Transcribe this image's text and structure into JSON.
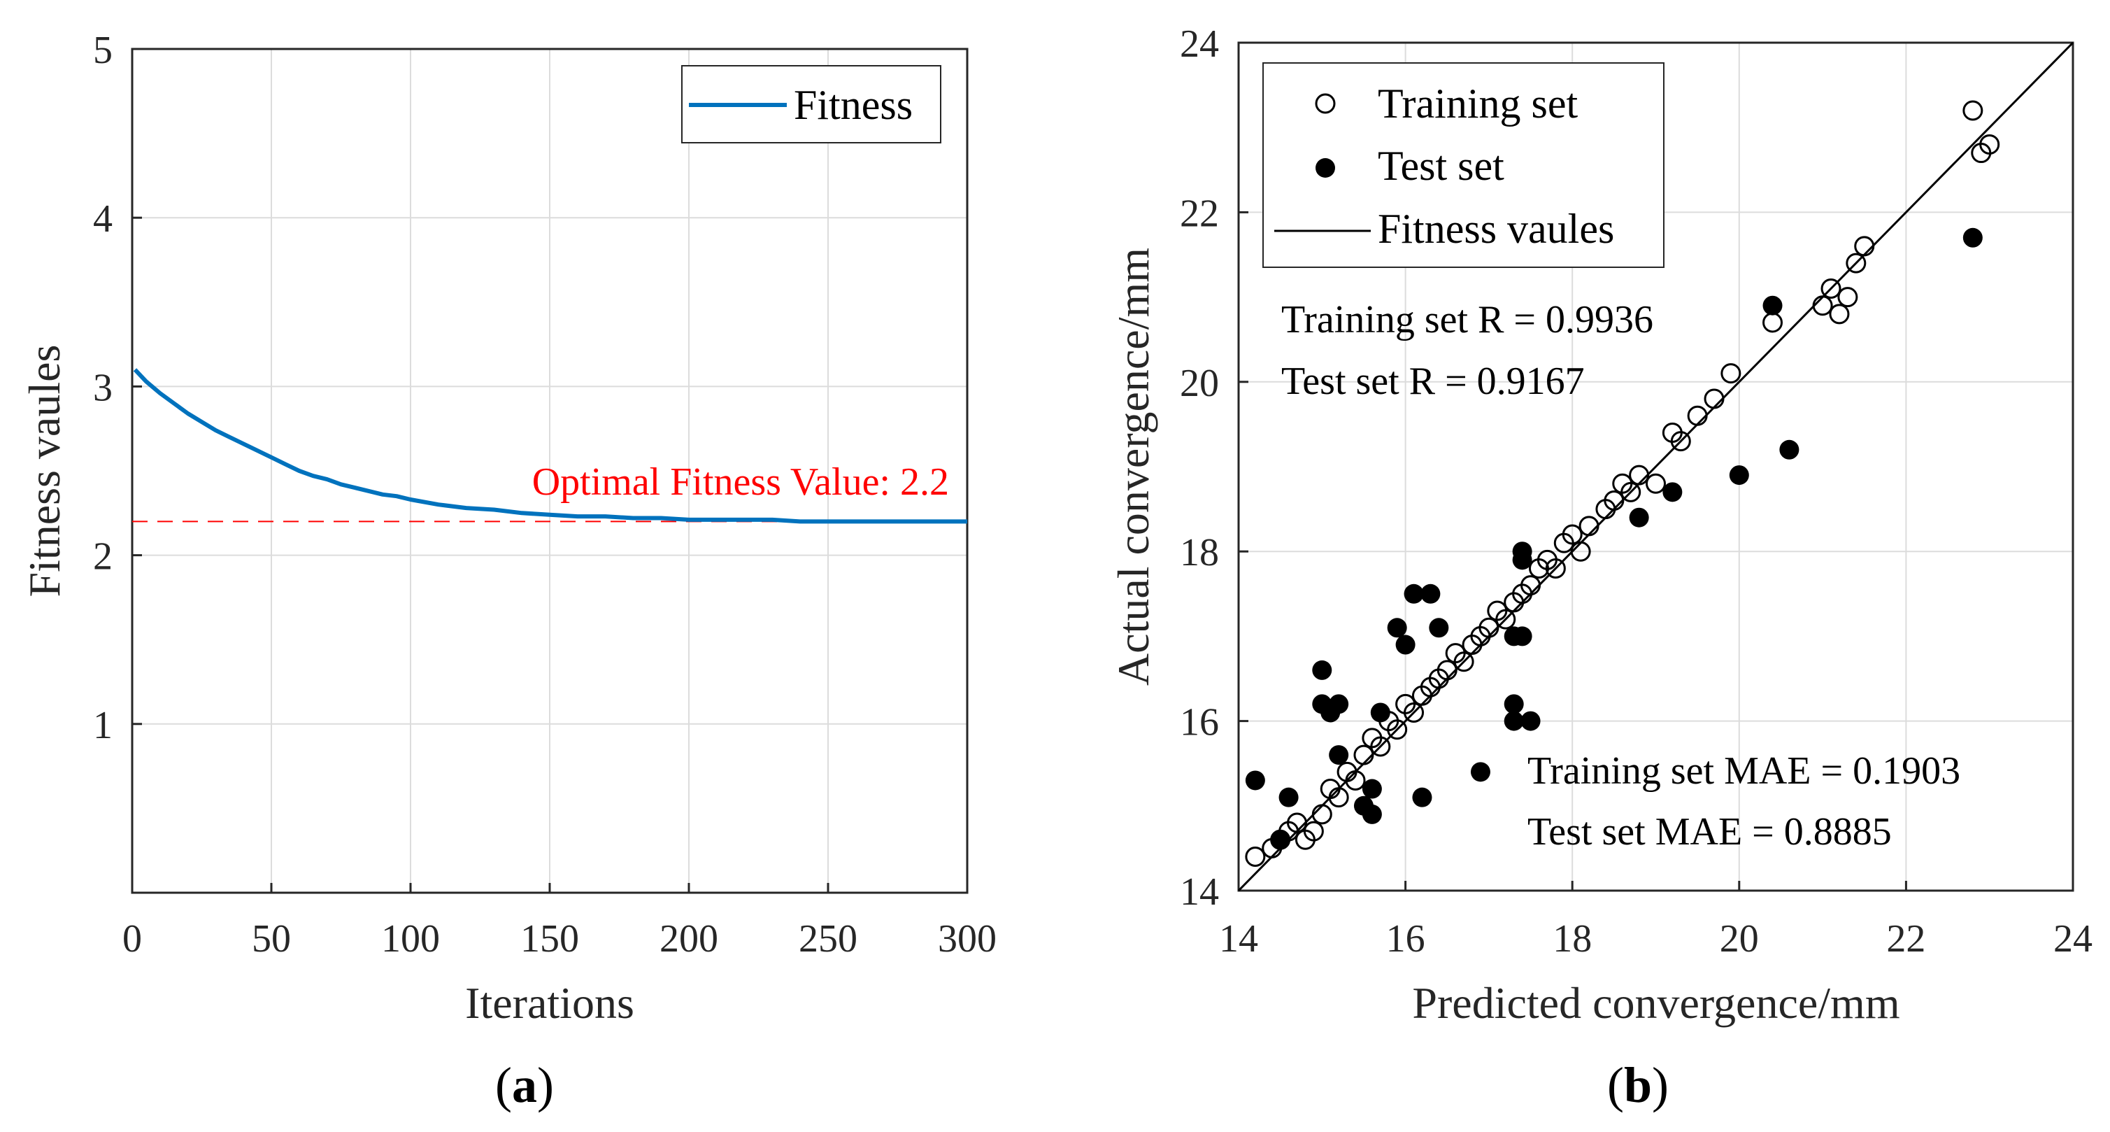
{
  "chart_data": [
    {
      "type": "line",
      "panel_label_open": "(",
      "panel_label": "a",
      "panel_label_close": ")",
      "xlabel": "Iterations",
      "ylabel": "Fitness vaules",
      "xlim": [
        0,
        300
      ],
      "ylim": [
        0,
        5
      ],
      "xticks": [
        0,
        50,
        100,
        150,
        200,
        250,
        300
      ],
      "yticks": [
        1,
        2,
        3,
        4,
        5
      ],
      "grid": true,
      "legend": {
        "placement": "top-right",
        "entries": [
          "Fitness"
        ]
      },
      "colors": {
        "series": "#0072bd",
        "reference": "#ff0000"
      },
      "series": [
        {
          "name": "Fitness",
          "x": [
            1,
            5,
            10,
            15,
            20,
            25,
            30,
            35,
            40,
            45,
            50,
            55,
            60,
            65,
            70,
            75,
            80,
            85,
            90,
            95,
            100,
            110,
            120,
            130,
            140,
            150,
            160,
            170,
            180,
            190,
            200,
            210,
            220,
            230,
            240,
            250,
            260,
            270,
            280,
            290,
            300
          ],
          "y": [
            3.1,
            3.03,
            2.96,
            2.9,
            2.84,
            2.79,
            2.74,
            2.7,
            2.66,
            2.62,
            2.58,
            2.54,
            2.5,
            2.47,
            2.45,
            2.42,
            2.4,
            2.38,
            2.36,
            2.35,
            2.33,
            2.3,
            2.28,
            2.27,
            2.25,
            2.24,
            2.23,
            2.23,
            2.22,
            2.22,
            2.21,
            2.21,
            2.21,
            2.21,
            2.2,
            2.2,
            2.2,
            2.2,
            2.2,
            2.2,
            2.2
          ]
        }
      ],
      "reference_line": {
        "y": 2.2,
        "style": "dashed"
      },
      "annotations": [
        "Optimal Fitness Value: 2.2"
      ]
    },
    {
      "type": "scatter",
      "panel_label_open": "(",
      "panel_label": "b",
      "panel_label_close": ")",
      "xlabel": "Predicted convergence/mm",
      "ylabel": "Actual convergence/mm",
      "xlim": [
        14,
        24
      ],
      "ylim": [
        14,
        24
      ],
      "xticks": [
        14,
        16,
        18,
        20,
        22,
        24
      ],
      "yticks": [
        14,
        16,
        18,
        20,
        22,
        24
      ],
      "grid": true,
      "legend": {
        "placement": "top-left",
        "entries": [
          "Training set",
          "Test set",
          "Fitness vaules"
        ]
      },
      "fit_line": {
        "x": [
          14,
          24
        ],
        "y": [
          14,
          24
        ]
      },
      "annotations": [
        "Training set R = 0.9936",
        "Test set R = 0.9167",
        "Training set MAE = 0.1903",
        "Test set MAE = 0.8885"
      ],
      "series": [
        {
          "name": "Training set",
          "marker": "open-circle",
          "points": [
            [
              14.2,
              14.4
            ],
            [
              14.4,
              14.5
            ],
            [
              14.5,
              14.6
            ],
            [
              14.6,
              14.7
            ],
            [
              14.7,
              14.8
            ],
            [
              14.8,
              14.6
            ],
            [
              14.9,
              14.7
            ],
            [
              15.0,
              14.9
            ],
            [
              15.1,
              15.2
            ],
            [
              15.2,
              15.1
            ],
            [
              15.3,
              15.4
            ],
            [
              15.4,
              15.3
            ],
            [
              15.5,
              15.6
            ],
            [
              15.6,
              15.8
            ],
            [
              15.7,
              15.7
            ],
            [
              15.8,
              16.0
            ],
            [
              15.9,
              15.9
            ],
            [
              16.0,
              16.2
            ],
            [
              16.1,
              16.1
            ],
            [
              16.2,
              16.3
            ],
            [
              16.3,
              16.4
            ],
            [
              16.4,
              16.5
            ],
            [
              16.5,
              16.6
            ],
            [
              16.6,
              16.8
            ],
            [
              16.7,
              16.7
            ],
            [
              16.8,
              16.9
            ],
            [
              16.9,
              17.0
            ],
            [
              17.0,
              17.1
            ],
            [
              17.1,
              17.3
            ],
            [
              17.2,
              17.2
            ],
            [
              17.3,
              17.4
            ],
            [
              17.4,
              17.5
            ],
            [
              17.5,
              17.6
            ],
            [
              17.6,
              17.8
            ],
            [
              17.7,
              17.9
            ],
            [
              17.8,
              17.8
            ],
            [
              17.9,
              18.1
            ],
            [
              18.0,
              18.2
            ],
            [
              18.1,
              18.0
            ],
            [
              18.2,
              18.3
            ],
            [
              18.4,
              18.5
            ],
            [
              18.5,
              18.6
            ],
            [
              18.6,
              18.8
            ],
            [
              18.7,
              18.7
            ],
            [
              18.8,
              18.9
            ],
            [
              19.0,
              18.8
            ],
            [
              19.2,
              19.4
            ],
            [
              19.3,
              19.3
            ],
            [
              19.5,
              19.6
            ],
            [
              19.7,
              19.8
            ],
            [
              19.9,
              20.1
            ],
            [
              20.4,
              20.7
            ],
            [
              21.0,
              20.9
            ],
            [
              21.1,
              21.1
            ],
            [
              21.2,
              20.8
            ],
            [
              21.3,
              21.0
            ],
            [
              21.4,
              21.4
            ],
            [
              21.5,
              21.6
            ],
            [
              22.8,
              23.2
            ],
            [
              22.9,
              22.7
            ],
            [
              23.0,
              22.8
            ]
          ]
        },
        {
          "name": "Test set",
          "marker": "filled-circle",
          "points": [
            [
              14.2,
              15.3
            ],
            [
              14.5,
              14.6
            ],
            [
              14.6,
              15.1
            ],
            [
              15.0,
              16.6
            ],
            [
              15.0,
              16.2
            ],
            [
              15.1,
              16.1
            ],
            [
              15.2,
              16.2
            ],
            [
              15.2,
              15.6
            ],
            [
              15.5,
              15.0
            ],
            [
              15.6,
              14.9
            ],
            [
              15.6,
              15.2
            ],
            [
              15.7,
              16.1
            ],
            [
              15.9,
              17.1
            ],
            [
              16.0,
              16.9
            ],
            [
              16.1,
              17.5
            ],
            [
              16.2,
              15.1
            ],
            [
              16.3,
              17.5
            ],
            [
              16.4,
              17.1
            ],
            [
              16.9,
              15.4
            ],
            [
              17.3,
              17.0
            ],
            [
              17.3,
              16.2
            ],
            [
              17.3,
              16.0
            ],
            [
              17.4,
              18.0
            ],
            [
              17.4,
              17.0
            ],
            [
              17.4,
              17.9
            ],
            [
              17.5,
              16.0
            ],
            [
              18.8,
              18.4
            ],
            [
              19.2,
              18.7
            ],
            [
              20.0,
              18.9
            ],
            [
              20.4,
              20.9
            ],
            [
              20.6,
              19.2
            ],
            [
              22.8,
              21.7
            ]
          ]
        }
      ]
    }
  ]
}
